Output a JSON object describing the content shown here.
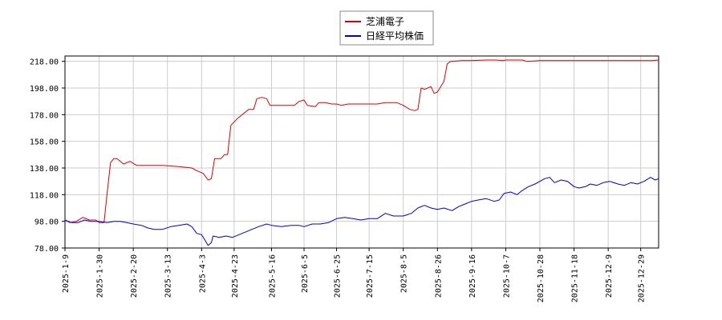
{
  "chart_data": {
    "type": "line",
    "title": "",
    "xlabel": "",
    "ylabel": "",
    "ylim": [
      78,
      222
    ],
    "xlim": [
      "2025-01-09",
      "2026-01-09"
    ],
    "grid": true,
    "legend_position": "top-center",
    "y_ticks": [
      "78.00",
      "98.00",
      "118.00",
      "138.00",
      "158.00",
      "178.00",
      "198.00",
      "218.00"
    ],
    "x_ticks": [
      "2025-1-9",
      "2025-1-30",
      "2025-2-20",
      "2025-3-13",
      "2025-4-3",
      "2025-4-23",
      "2025-5-16",
      "2025-6-5",
      "2025-6-25",
      "2025-7-15",
      "2025-8-5",
      "2025-8-26",
      "2025-9-16",
      "2025-10-7",
      "2025-10-28",
      "2025-11-18",
      "2025-12-9",
      "2025-12-29"
    ],
    "series": [
      {
        "name": "芝浦電子",
        "color": "#dd0000",
        "points": [
          [
            "2025-01-09",
            99
          ],
          [
            "2025-01-12",
            97
          ],
          [
            "2025-01-16",
            98
          ],
          [
            "2025-01-20",
            101
          ],
          [
            "2025-01-24",
            99
          ],
          [
            "2025-01-28",
            99
          ],
          [
            "2025-01-30",
            97
          ],
          [
            "2025-02-02",
            97
          ],
          [
            "2025-02-04",
            120
          ],
          [
            "2025-02-06",
            142
          ],
          [
            "2025-02-08",
            145
          ],
          [
            "2025-02-10",
            145
          ],
          [
            "2025-02-14",
            141
          ],
          [
            "2025-02-18",
            143
          ],
          [
            "2025-02-22",
            140
          ],
          [
            "2025-03-01",
            140
          ],
          [
            "2025-03-10",
            140
          ],
          [
            "2025-03-20",
            139
          ],
          [
            "2025-03-28",
            138
          ],
          [
            "2025-03-31",
            136
          ],
          [
            "2025-04-04",
            134
          ],
          [
            "2025-04-07",
            129
          ],
          [
            "2025-04-09",
            130
          ],
          [
            "2025-04-11",
            145
          ],
          [
            "2025-04-15",
            145
          ],
          [
            "2025-04-17",
            148
          ],
          [
            "2025-04-19",
            148
          ],
          [
            "2025-04-21",
            170
          ],
          [
            "2025-04-25",
            175
          ],
          [
            "2025-04-28",
            178
          ],
          [
            "2025-05-02",
            182
          ],
          [
            "2025-05-05",
            182
          ],
          [
            "2025-05-07",
            190
          ],
          [
            "2025-05-10",
            191
          ],
          [
            "2025-05-13",
            190
          ],
          [
            "2025-05-15",
            185
          ],
          [
            "2025-05-25",
            185
          ],
          [
            "2025-05-30",
            185
          ],
          [
            "2025-06-02",
            188
          ],
          [
            "2025-06-05",
            189
          ],
          [
            "2025-06-07",
            185
          ],
          [
            "2025-06-12",
            184
          ],
          [
            "2025-06-14",
            187
          ],
          [
            "2025-06-18",
            187
          ],
          [
            "2025-06-22",
            186
          ],
          [
            "2025-06-25",
            186
          ],
          [
            "2025-06-28",
            185
          ],
          [
            "2025-07-02",
            186
          ],
          [
            "2025-07-10",
            186
          ],
          [
            "2025-07-20",
            186
          ],
          [
            "2025-07-25",
            187
          ],
          [
            "2025-08-01",
            187
          ],
          [
            "2025-08-05",
            185
          ],
          [
            "2025-08-09",
            182
          ],
          [
            "2025-08-12",
            181
          ],
          [
            "2025-08-14",
            182
          ],
          [
            "2025-08-16",
            198
          ],
          [
            "2025-08-18",
            197
          ],
          [
            "2025-08-22",
            199
          ],
          [
            "2025-08-24",
            194
          ],
          [
            "2025-08-26",
            195
          ],
          [
            "2025-08-30",
            203
          ],
          [
            "2025-09-01",
            216
          ],
          [
            "2025-09-03",
            218
          ],
          [
            "2025-09-10",
            218.5
          ],
          [
            "2025-09-16",
            218.5
          ],
          [
            "2025-09-25",
            219
          ],
          [
            "2025-10-01",
            219
          ],
          [
            "2025-10-05",
            218.5
          ],
          [
            "2025-10-07",
            219
          ],
          [
            "2025-10-12",
            219
          ],
          [
            "2025-10-17",
            219
          ],
          [
            "2025-10-20",
            218
          ],
          [
            "2025-10-28",
            218.5
          ],
          [
            "2025-11-05",
            218.5
          ],
          [
            "2025-11-18",
            218.5
          ],
          [
            "2025-12-01",
            218.5
          ],
          [
            "2025-12-20",
            218.5
          ],
          [
            "2026-01-05",
            218.5
          ],
          [
            "2026-01-09",
            219
          ]
        ]
      },
      {
        "name": "日経平均株価",
        "color": "#0000cc",
        "points": [
          [
            "2025-01-09",
            99
          ],
          [
            "2025-01-13",
            97
          ],
          [
            "2025-01-17",
            97
          ],
          [
            "2025-01-21",
            99
          ],
          [
            "2025-01-25",
            98
          ],
          [
            "2025-01-30",
            98
          ],
          [
            "2025-02-04",
            97
          ],
          [
            "2025-02-08",
            98
          ],
          [
            "2025-02-12",
            98
          ],
          [
            "2025-02-16",
            97
          ],
          [
            "2025-02-20",
            96
          ],
          [
            "2025-02-25",
            95
          ],
          [
            "2025-03-01",
            93
          ],
          [
            "2025-03-05",
            92
          ],
          [
            "2025-03-10",
            92
          ],
          [
            "2025-03-15",
            94
          ],
          [
            "2025-03-20",
            95
          ],
          [
            "2025-03-25",
            96
          ],
          [
            "2025-03-28",
            94
          ],
          [
            "2025-03-31",
            89
          ],
          [
            "2025-04-03",
            88
          ],
          [
            "2025-04-05",
            84
          ],
          [
            "2025-04-07",
            80
          ],
          [
            "2025-04-09",
            82
          ],
          [
            "2025-04-10",
            87
          ],
          [
            "2025-04-14",
            86
          ],
          [
            "2025-04-18",
            87
          ],
          [
            "2025-04-22",
            86
          ],
          [
            "2025-04-28",
            89
          ],
          [
            "2025-05-02",
            91
          ],
          [
            "2025-05-08",
            94
          ],
          [
            "2025-05-13",
            96
          ],
          [
            "2025-05-16",
            95
          ],
          [
            "2025-05-22",
            94
          ],
          [
            "2025-05-28",
            95
          ],
          [
            "2025-06-02",
            95
          ],
          [
            "2025-06-05",
            94
          ],
          [
            "2025-06-10",
            96
          ],
          [
            "2025-06-15",
            96
          ],
          [
            "2025-06-20",
            97
          ],
          [
            "2025-06-25",
            100
          ],
          [
            "2025-06-30",
            101
          ],
          [
            "2025-07-05",
            100
          ],
          [
            "2025-07-10",
            99
          ],
          [
            "2025-07-15",
            100
          ],
          [
            "2025-07-20",
            100
          ],
          [
            "2025-07-25",
            104
          ],
          [
            "2025-07-30",
            102
          ],
          [
            "2025-08-05",
            102
          ],
          [
            "2025-08-10",
            104
          ],
          [
            "2025-08-14",
            108
          ],
          [
            "2025-08-18",
            110
          ],
          [
            "2025-08-22",
            108
          ],
          [
            "2025-08-26",
            107
          ],
          [
            "2025-08-30",
            108
          ],
          [
            "2025-09-04",
            106
          ],
          [
            "2025-09-08",
            109
          ],
          [
            "2025-09-12",
            111
          ],
          [
            "2025-09-16",
            113
          ],
          [
            "2025-09-20",
            114
          ],
          [
            "2025-09-25",
            115
          ],
          [
            "2025-09-30",
            113
          ],
          [
            "2025-10-03",
            114
          ],
          [
            "2025-10-06",
            119
          ],
          [
            "2025-10-10",
            120
          ],
          [
            "2025-10-14",
            118
          ],
          [
            "2025-10-17",
            121
          ],
          [
            "2025-10-21",
            124
          ],
          [
            "2025-10-25",
            126
          ],
          [
            "2025-10-28",
            128
          ],
          [
            "2025-10-31",
            130
          ],
          [
            "2025-11-03",
            131
          ],
          [
            "2025-11-06",
            127
          ],
          [
            "2025-11-10",
            129
          ],
          [
            "2025-11-14",
            128
          ],
          [
            "2025-11-18",
            124
          ],
          [
            "2025-11-21",
            123
          ],
          [
            "2025-11-25",
            124
          ],
          [
            "2025-11-28",
            126
          ],
          [
            "2025-12-02",
            125
          ],
          [
            "2025-12-06",
            127
          ],
          [
            "2025-12-10",
            128
          ],
          [
            "2025-12-15",
            126
          ],
          [
            "2025-12-19",
            125
          ],
          [
            "2025-12-23",
            127
          ],
          [
            "2025-12-27",
            126
          ],
          [
            "2025-12-31",
            128
          ],
          [
            "2026-01-04",
            131
          ],
          [
            "2026-01-07",
            129
          ],
          [
            "2026-01-09",
            130
          ]
        ]
      }
    ]
  }
}
